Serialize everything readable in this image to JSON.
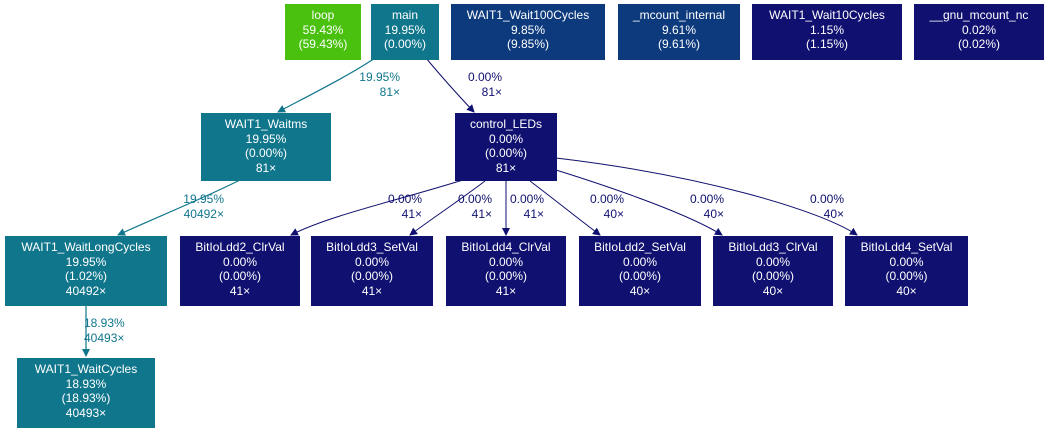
{
  "colors": {
    "green": "#4ac10f",
    "teal": "#10768c",
    "blue": "#0d3a7c",
    "navy": "#101070",
    "text": "#ffffff",
    "teal_edge": "#10768c",
    "navy_edge": "#101070"
  },
  "nodes": {
    "loop": {
      "name": "loop",
      "total": "59.43%",
      "self": "(59.43%)"
    },
    "main": {
      "name": "main",
      "total": "19.95%",
      "self": "(0.00%)"
    },
    "wait100": {
      "name": "WAIT1_Wait100Cycles",
      "total": "9.85%",
      "self": "(9.85%)"
    },
    "mcount_internal": {
      "name": "_mcount_internal",
      "total": "9.61%",
      "self": "(9.61%)"
    },
    "wait10": {
      "name": "WAIT1_Wait10Cycles",
      "total": "1.15%",
      "self": "(1.15%)"
    },
    "gnu_mcount": {
      "name": "__gnu_mcount_nc",
      "total": "0.02%",
      "self": "(0.02%)"
    },
    "waitms": {
      "name": "WAIT1_Waitms",
      "total": "19.95%",
      "self": "(0.00%)",
      "calls": "81×"
    },
    "control_leds": {
      "name": "control_LEDs",
      "total": "0.00%",
      "self": "(0.00%)",
      "calls": "81×"
    },
    "waitlong": {
      "name": "WAIT1_WaitLongCycles",
      "total": "19.95%",
      "self": "(1.02%)",
      "calls": "40492×"
    },
    "waitcycles": {
      "name": "WAIT1_WaitCycles",
      "total": "18.93%",
      "self": "(18.93%)",
      "calls": "40493×"
    },
    "bit2clr": {
      "name": "BitIoLdd2_ClrVal",
      "total": "0.00%",
      "self": "(0.00%)",
      "calls": "41×"
    },
    "bit3set": {
      "name": "BitIoLdd3_SetVal",
      "total": "0.00%",
      "self": "(0.00%)",
      "calls": "41×"
    },
    "bit4clr": {
      "name": "BitIoLdd4_ClrVal",
      "total": "0.00%",
      "self": "(0.00%)",
      "calls": "41×"
    },
    "bit2set": {
      "name": "BitIoLdd2_SetVal",
      "total": "0.00%",
      "self": "(0.00%)",
      "calls": "40×"
    },
    "bit3clr": {
      "name": "BitIoLdd3_ClrVal",
      "total": "0.00%",
      "self": "(0.00%)",
      "calls": "40×"
    },
    "bit4set": {
      "name": "BitIoLdd4_SetVal",
      "total": "0.00%",
      "self": "(0.00%)",
      "calls": "40×"
    }
  },
  "edges": {
    "main_waitms": {
      "pct": "19.95%",
      "calls": "81×"
    },
    "main_control": {
      "pct": "0.00%",
      "calls": "81×"
    },
    "waitms_waitlong": {
      "pct": "19.95%",
      "calls": "40492×"
    },
    "waitlong_waitcycles": {
      "pct": "18.93%",
      "calls": "40493×"
    },
    "control_bit2clr": {
      "pct": "0.00%",
      "calls": "41×"
    },
    "control_bit3set": {
      "pct": "0.00%",
      "calls": "41×"
    },
    "control_bit4clr": {
      "pct": "0.00%",
      "calls": "41×"
    },
    "control_bit2set": {
      "pct": "0.00%",
      "calls": "40×"
    },
    "control_bit3clr": {
      "pct": "0.00%",
      "calls": "40×"
    },
    "control_bit4set": {
      "pct": "0.00%",
      "calls": "40×"
    }
  }
}
